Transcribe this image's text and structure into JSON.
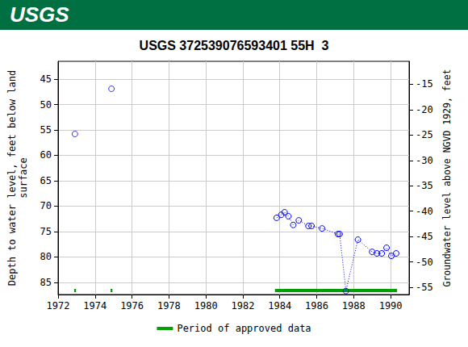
{
  "header": {
    "logo_text": "USGS",
    "color": "#006f41"
  },
  "chart_data": {
    "type": "scatter",
    "title": "USGS 372539076593401 55H  3",
    "y_label": "Depth to water level, feet below land\nsurface",
    "y2_label": "Groundwater level above NGVD 1929, feet",
    "xlim": [
      1972,
      1991
    ],
    "xticks": [
      1972,
      1974,
      1976,
      1978,
      1980,
      1982,
      1984,
      1986,
      1988,
      1990
    ],
    "ylim": [
      87.4,
      41.5
    ],
    "yticks": [
      45,
      50,
      55,
      60,
      65,
      70,
      75,
      80,
      85
    ],
    "y2lim": [
      -56.4,
      -10.5
    ],
    "y2ticks": [
      -15,
      -20,
      -25,
      -30,
      -35,
      -40,
      -45,
      -50,
      -55
    ],
    "grid": true,
    "series": [
      {
        "type": "scatter",
        "marker": "open circle",
        "color": "#0000ff",
        "x": [
          1972.91,
          1974.89
        ],
        "values": [
          55.8,
          46.9
        ]
      },
      {
        "type": "line",
        "line_style": "dotted",
        "marker": "open circle",
        "color": "#0000ff",
        "x": [
          1983.83,
          1984.08,
          1984.26,
          1984.47,
          1984.73,
          1985.03,
          1985.55,
          1985.72,
          1986.29,
          1987.15,
          1987.24,
          1987.58,
          1988.23,
          1989.0,
          1989.26,
          1989.52,
          1989.78,
          1990.04,
          1990.3
        ],
        "values": [
          72.3,
          71.7,
          71.2,
          72.0,
          73.7,
          72.8,
          73.9,
          73.9,
          74.4,
          75.5,
          75.5,
          86.7,
          76.6,
          79.0,
          79.3,
          79.3,
          78.2,
          79.8,
          79.3
        ]
      }
    ],
    "approved_periods": {
      "name": "Period of approved data",
      "color": "#00a000",
      "ranges": [
        [
          1972.87,
          1972.97
        ],
        [
          1974.84,
          1974.94
        ],
        [
          1983.74,
          1990.35
        ]
      ]
    },
    "legend": "bottom"
  }
}
